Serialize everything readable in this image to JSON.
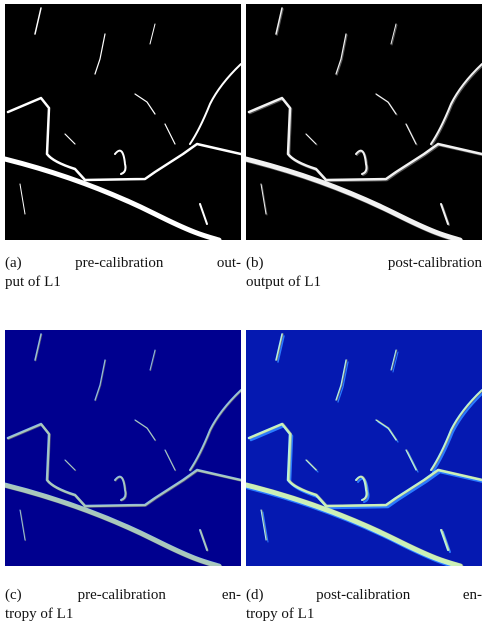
{
  "captions": [
    {
      "lines": [
        "(a) pre-calibration out-",
        "put of L1"
      ]
    },
    {
      "lines": [
        "(b) post-calibration",
        "output of L1"
      ]
    },
    {
      "lines": [
        "(c) pre-calibration en-",
        "tropy of L1"
      ]
    },
    {
      "lines": [
        "(d) post-calibration en-",
        "tropy of L1"
      ]
    }
  ]
}
